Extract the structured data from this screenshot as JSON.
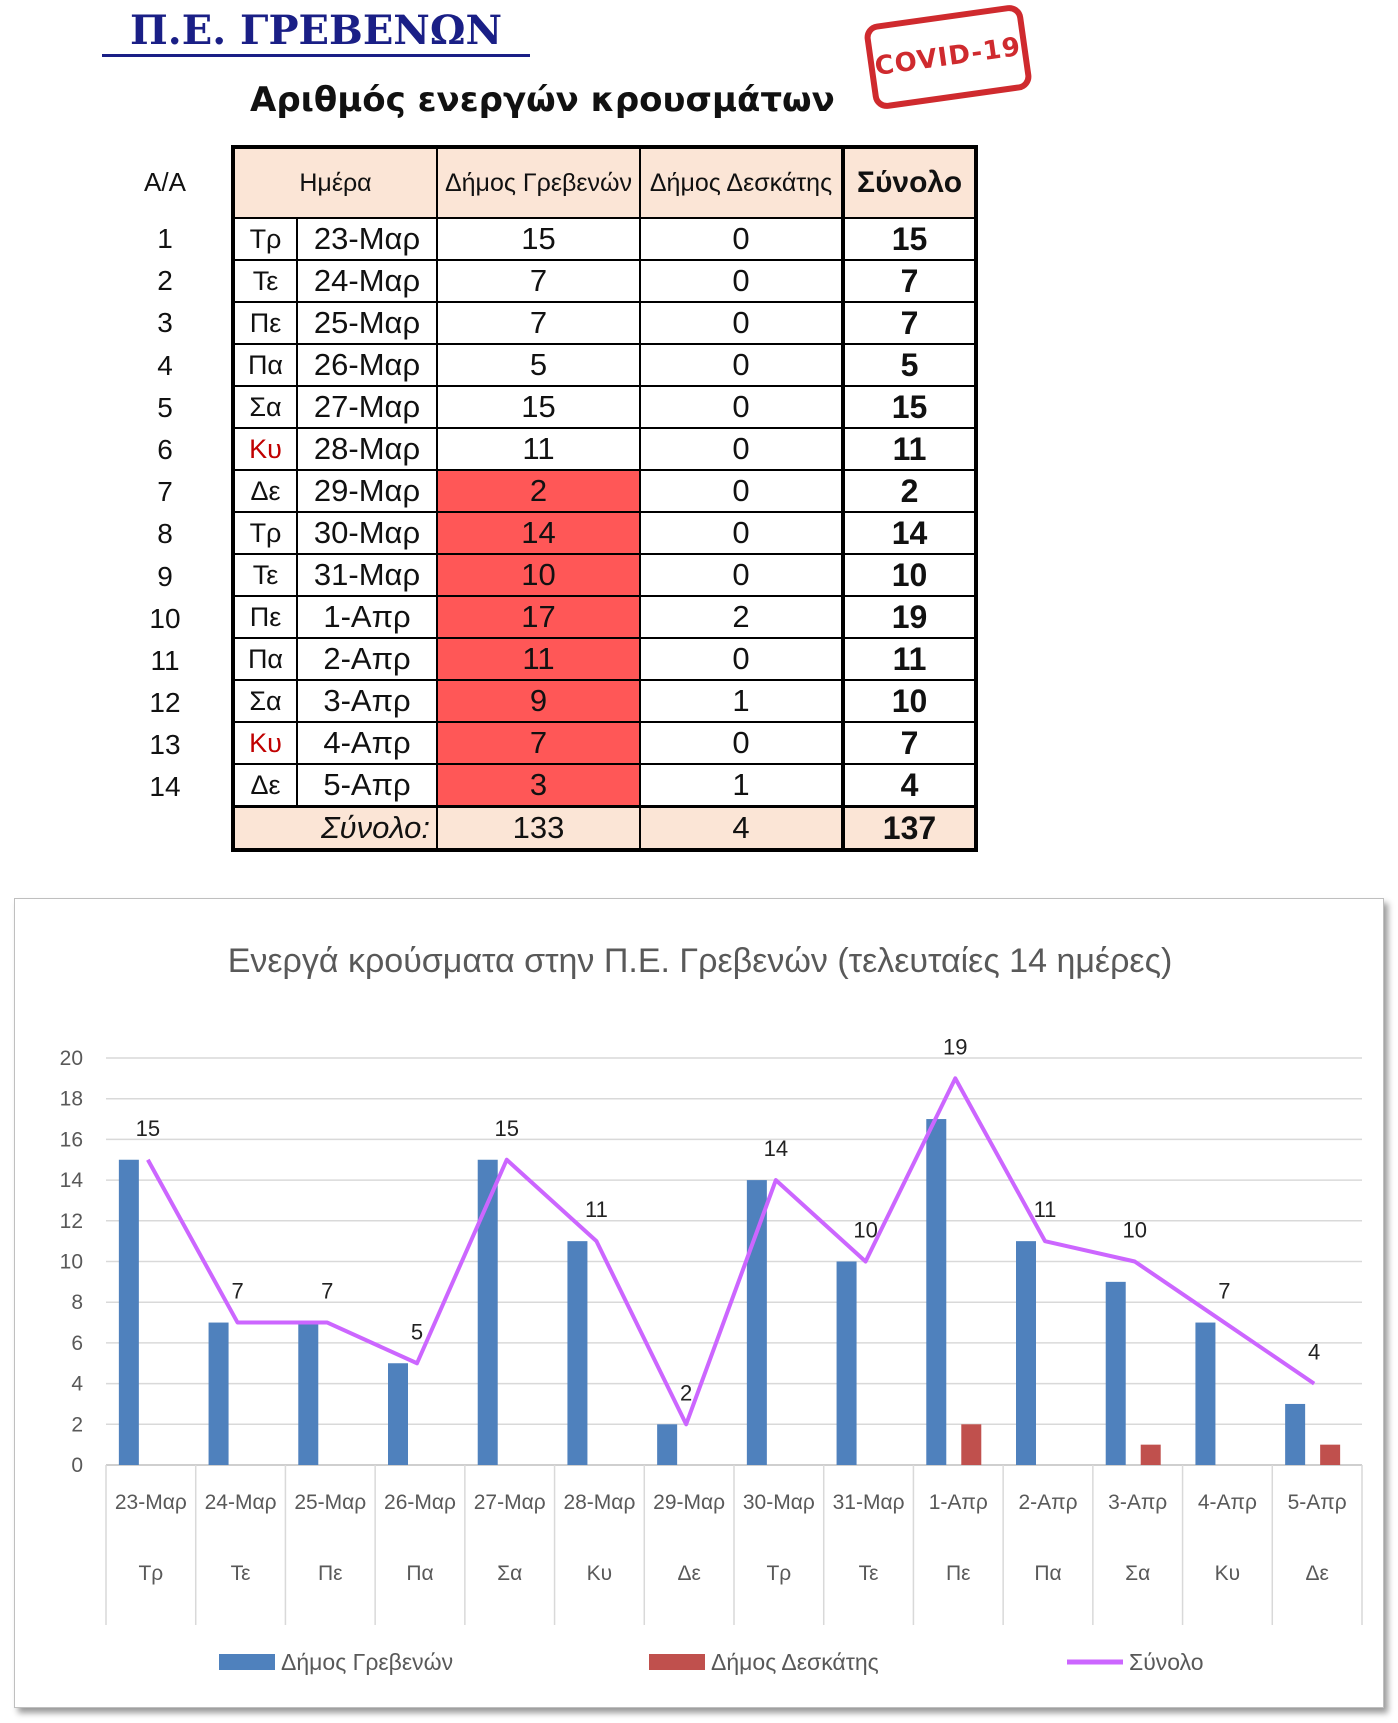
{
  "header": {
    "region": "Π.Ε. ΓΡΕΒΕΝΩΝ",
    "subtitle": "Αριθμός ενεργών κρουσμάτων",
    "stamp": "COVID-19"
  },
  "table": {
    "aa_label": "Α/Α",
    "col_day": "Ημέρα",
    "col_grevena": "Δήμος Γρεβενών",
    "col_deskati": "Δήμος Δεσκάτης",
    "col_total": "Σύνολο",
    "rows": [
      {
        "n": "1",
        "dow": "Τρ",
        "date": "23-Μαρ",
        "grevena": "15",
        "deskati": "0",
        "total": "15",
        "weekend": false,
        "highlight": false
      },
      {
        "n": "2",
        "dow": "Τε",
        "date": "24-Μαρ",
        "grevena": "7",
        "deskati": "0",
        "total": "7",
        "weekend": false,
        "highlight": false
      },
      {
        "n": "3",
        "dow": "Πε",
        "date": "25-Μαρ",
        "grevena": "7",
        "deskati": "0",
        "total": "7",
        "weekend": false,
        "highlight": false
      },
      {
        "n": "4",
        "dow": "Πα",
        "date": "26-Μαρ",
        "grevena": "5",
        "deskati": "0",
        "total": "5",
        "weekend": false,
        "highlight": false
      },
      {
        "n": "5",
        "dow": "Σα",
        "date": "27-Μαρ",
        "grevena": "15",
        "deskati": "0",
        "total": "15",
        "weekend": false,
        "highlight": false
      },
      {
        "n": "6",
        "dow": "Κυ",
        "date": "28-Μαρ",
        "grevena": "11",
        "deskati": "0",
        "total": "11",
        "weekend": true,
        "highlight": false
      },
      {
        "n": "7",
        "dow": "Δε",
        "date": "29-Μαρ",
        "grevena": "2",
        "deskati": "0",
        "total": "2",
        "weekend": false,
        "highlight": true
      },
      {
        "n": "8",
        "dow": "Τρ",
        "date": "30-Μαρ",
        "grevena": "14",
        "deskati": "0",
        "total": "14",
        "weekend": false,
        "highlight": true
      },
      {
        "n": "9",
        "dow": "Τε",
        "date": "31-Μαρ",
        "grevena": "10",
        "deskati": "0",
        "total": "10",
        "weekend": false,
        "highlight": true
      },
      {
        "n": "10",
        "dow": "Πε",
        "date": "1-Απρ",
        "grevena": "17",
        "deskati": "2",
        "total": "19",
        "weekend": false,
        "highlight": true
      },
      {
        "n": "11",
        "dow": "Πα",
        "date": "2-Απρ",
        "grevena": "11",
        "deskati": "0",
        "total": "11",
        "weekend": false,
        "highlight": true
      },
      {
        "n": "12",
        "dow": "Σα",
        "date": "3-Απρ",
        "grevena": "9",
        "deskati": "1",
        "total": "10",
        "weekend": false,
        "highlight": true
      },
      {
        "n": "13",
        "dow": "Κυ",
        "date": "4-Απρ",
        "grevena": "7",
        "deskati": "0",
        "total": "7",
        "weekend": true,
        "highlight": true
      },
      {
        "n": "14",
        "dow": "Δε",
        "date": "5-Απρ",
        "grevena": "3",
        "deskati": "1",
        "total": "4",
        "weekend": false,
        "highlight": true
      }
    ],
    "sum_label": "Σύνολο:",
    "sum_grevena": "133",
    "sum_deskati": "4",
    "sum_total": "137"
  },
  "colors": {
    "grevena_bar": "#4f81bd",
    "deskati_bar": "#c0504d",
    "total_line": "#cc66ff",
    "highlight_cell": "#ff5757",
    "header_fill": "#fbe5d6",
    "weekend_text": "#c00000"
  },
  "chart_data": {
    "type": "bar",
    "title": "Ενεργά κρούσματα στην Π.Ε. Γρεβενών (τελευταίες 14 ημέρες)",
    "categories": [
      "23-Μαρ",
      "24-Μαρ",
      "25-Μαρ",
      "26-Μαρ",
      "27-Μαρ",
      "28-Μαρ",
      "29-Μαρ",
      "30-Μαρ",
      "31-Μαρ",
      "1-Απρ",
      "2-Απρ",
      "3-Απρ",
      "4-Απρ",
      "5-Απρ"
    ],
    "categories_secondary": [
      "Τρ",
      "Τε",
      "Πε",
      "Πα",
      "Σα",
      "Κυ",
      "Δε",
      "Τρ",
      "Τε",
      "Πε",
      "Πα",
      "Σα",
      "Κυ",
      "Δε"
    ],
    "series": [
      {
        "name": "Δήμος Γρεβενών",
        "type": "bar",
        "values": [
          15,
          7,
          7,
          5,
          15,
          11,
          2,
          14,
          10,
          17,
          11,
          9,
          7,
          3
        ]
      },
      {
        "name": "Δήμος Δεσκάτης",
        "type": "bar",
        "values": [
          0,
          0,
          0,
          0,
          0,
          0,
          0,
          0,
          0,
          2,
          0,
          1,
          0,
          1
        ]
      },
      {
        "name": "Σύνολο",
        "type": "line",
        "values": [
          15,
          7,
          7,
          5,
          15,
          11,
          2,
          14,
          10,
          19,
          11,
          10,
          7,
          4
        ],
        "data_labels": true
      }
    ],
    "ylim": [
      0,
      20
    ],
    "yticks": [
      0,
      2,
      4,
      6,
      8,
      10,
      12,
      14,
      16,
      18,
      20
    ],
    "grid": true,
    "legend": "bottom"
  }
}
